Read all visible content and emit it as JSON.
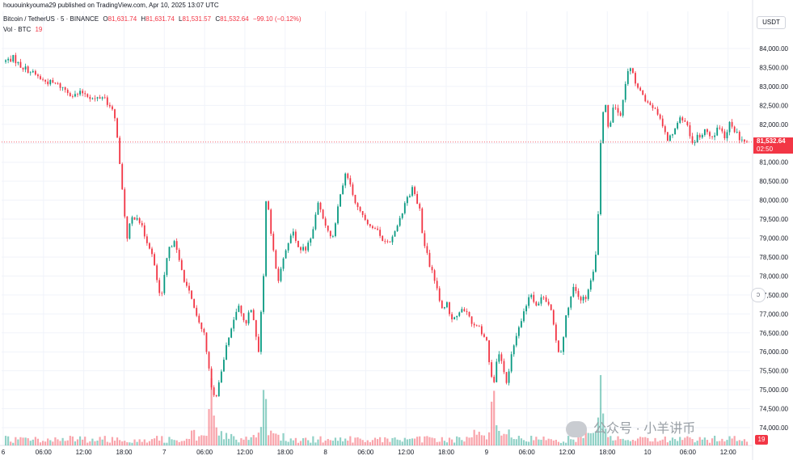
{
  "header": {
    "published_line": "hououinkyouma29 published on TradingView.com, Apr 10, 2025 13:07 UTC",
    "symbol": "Bitcoin / TetherUS · 5 · BINANCE",
    "o_label": "O",
    "o_value": "81,631.74",
    "h_label": "H",
    "h_value": "81,631.74",
    "l_label": "L",
    "l_value": "81,531.57",
    "c_label": "C",
    "c_value": "81,532.64",
    "change": "−99.10 (−0.12%)",
    "vol_label": "Vol · BTC",
    "vol_value": "19"
  },
  "currency_button": "USDT",
  "last_price_tag": {
    "price": "81,532.64",
    "countdown": "02:50"
  },
  "volume_tag": "19",
  "watermark": "公众号 · 小羊讲币",
  "colors": {
    "up": "#089981",
    "down": "#f23645",
    "grid": "#f0f3fa",
    "axis_text": "#131722",
    "last_line": "#f23645"
  },
  "icons": {
    "tv_logo": "tradingview-logo-icon"
  },
  "chart_data": {
    "type": "candlestick",
    "symbol": "BTCUSDT",
    "interval": "5",
    "y_axis": {
      "ylim": [
        73900,
        84600
      ],
      "ticks": [
        84000,
        83500,
        83000,
        82500,
        82000,
        81500,
        81000,
        80500,
        80000,
        79500,
        79000,
        78500,
        78000,
        77500,
        77000,
        76500,
        76000,
        75500,
        75000,
        74500,
        74000
      ],
      "tick_labels": [
        "84,000.00",
        "83,500.00",
        "83,000.00",
        "82,500.00",
        "82,000.00",
        "81,500.00",
        "81,000.00",
        "80,500.00",
        "80,000.00",
        "79,500.00",
        "79,000.00",
        "78,500.00",
        "78,000.00",
        "77,500.00",
        "77,000.00",
        "76,500.00",
        "76,000.00",
        "75,500.00",
        "75,000.00",
        "74,500.00",
        "74,000.00"
      ]
    },
    "x_axis": {
      "ticks": [
        "6",
        "06:00",
        "12:00",
        "18:00",
        "7",
        "06:00",
        "12:00",
        "18:00",
        "8",
        "06:00",
        "12:00",
        "18:00",
        "9",
        "06:00",
        "12:00",
        "18:00",
        "10",
        "06:00",
        "12:00"
      ],
      "tick_hours": [
        0,
        6,
        12,
        18,
        24,
        30,
        36,
        42,
        48,
        54,
        60,
        66,
        72,
        78,
        84,
        90,
        96,
        102,
        108
      ],
      "range_hours": [
        0,
        110.8
      ]
    },
    "last_price": 81532.64,
    "price_path": [
      [
        0.0,
        83650
      ],
      [
        1.5,
        83750
      ],
      [
        2.5,
        83550
      ],
      [
        4.0,
        83400
      ],
      [
        6.0,
        83150
      ],
      [
        8.0,
        83050
      ],
      [
        9.0,
        82950
      ],
      [
        10.5,
        82750
      ],
      [
        12.0,
        82850
      ],
      [
        13.5,
        82650
      ],
      [
        15.0,
        82750
      ],
      [
        16.5,
        82250
      ],
      [
        17.0,
        81700
      ],
      [
        17.5,
        80600
      ],
      [
        18.0,
        79800
      ],
      [
        18.5,
        78900
      ],
      [
        19.0,
        79500
      ],
      [
        20.0,
        79600
      ],
      [
        21.0,
        79100
      ],
      [
        22.0,
        78700
      ],
      [
        23.0,
        77800
      ],
      [
        23.5,
        77300
      ],
      [
        24.5,
        78600
      ],
      [
        25.5,
        79000
      ],
      [
        26.0,
        78500
      ],
      [
        27.0,
        77900
      ],
      [
        28.0,
        77400
      ],
      [
        29.0,
        76800
      ],
      [
        30.0,
        76500
      ],
      [
        30.5,
        75700
      ],
      [
        31.0,
        75000
      ],
      [
        31.6,
        74700
      ],
      [
        32.5,
        75400
      ],
      [
        33.0,
        76000
      ],
      [
        34.0,
        76600
      ],
      [
        35.0,
        77300
      ],
      [
        36.0,
        76700
      ],
      [
        37.0,
        77200
      ],
      [
        37.5,
        76700
      ],
      [
        38.0,
        75900
      ],
      [
        38.8,
        78000
      ],
      [
        39.2,
        80200
      ],
      [
        40.0,
        78900
      ],
      [
        41.0,
        77800
      ],
      [
        42.0,
        78700
      ],
      [
        43.0,
        79200
      ],
      [
        44.0,
        78700
      ],
      [
        45.0,
        78700
      ],
      [
        46.0,
        79100
      ],
      [
        47.0,
        80000
      ],
      [
        48.0,
        79300
      ],
      [
        49.0,
        79000
      ],
      [
        50.0,
        79900
      ],
      [
        51.0,
        80700
      ],
      [
        52.0,
        80200
      ],
      [
        53.0,
        79700
      ],
      [
        54.0,
        79500
      ],
      [
        55.0,
        79300
      ],
      [
        56.0,
        79100
      ],
      [
        57.0,
        78900
      ],
      [
        58.0,
        79000
      ],
      [
        59.0,
        79500
      ],
      [
        60.0,
        80000
      ],
      [
        61.0,
        80300
      ],
      [
        62.0,
        79800
      ],
      [
        62.5,
        79000
      ],
      [
        63.5,
        78300
      ],
      [
        64.5,
        77800
      ],
      [
        65.5,
        77000
      ],
      [
        66.0,
        77300
      ],
      [
        67.0,
        76800
      ],
      [
        68.0,
        77100
      ],
      [
        69.0,
        77000
      ],
      [
        70.0,
        76700
      ],
      [
        71.0,
        76600
      ],
      [
        72.0,
        76300
      ],
      [
        72.6,
        75500
      ],
      [
        73.2,
        75100
      ],
      [
        73.7,
        76100
      ],
      [
        74.5,
        75600
      ],
      [
        75.0,
        75200
      ],
      [
        75.5,
        75700
      ],
      [
        76.5,
        76500
      ],
      [
        77.5,
        77000
      ],
      [
        78.5,
        77600
      ],
      [
        79.5,
        77200
      ],
      [
        80.5,
        77500
      ],
      [
        81.5,
        77200
      ],
      [
        82.3,
        76300
      ],
      [
        83.0,
        75900
      ],
      [
        84.0,
        77100
      ],
      [
        85.0,
        77700
      ],
      [
        86.0,
        77300
      ],
      [
        87.0,
        77500
      ],
      [
        88.0,
        78200
      ],
      [
        88.5,
        79000
      ],
      [
        89.0,
        81500
      ],
      [
        89.6,
        82800
      ],
      [
        90.2,
        81800
      ],
      [
        91.0,
        82500
      ],
      [
        92.0,
        82200
      ],
      [
        92.8,
        83200
      ],
      [
        93.4,
        83500
      ],
      [
        94.0,
        83200
      ],
      [
        95.0,
        82900
      ],
      [
        96.0,
        82500
      ],
      [
        97.0,
        82400
      ],
      [
        98.0,
        82100
      ],
      [
        99.0,
        81600
      ],
      [
        100.0,
        81900
      ],
      [
        101.0,
        82200
      ],
      [
        102.0,
        81900
      ],
      [
        102.8,
        81500
      ],
      [
        103.5,
        81700
      ],
      [
        104.5,
        81800
      ],
      [
        105.5,
        81600
      ],
      [
        106.5,
        81900
      ],
      [
        107.5,
        81700
      ],
      [
        108.3,
        82100
      ],
      [
        109.0,
        81800
      ],
      [
        110.0,
        81600
      ],
      [
        110.8,
        81532.64
      ]
    ],
    "volume_spikes_hours": [
      31.0,
      38.9,
      73.0,
      89.0
    ],
    "volume_unit": "BTC",
    "last_volume": 19
  }
}
